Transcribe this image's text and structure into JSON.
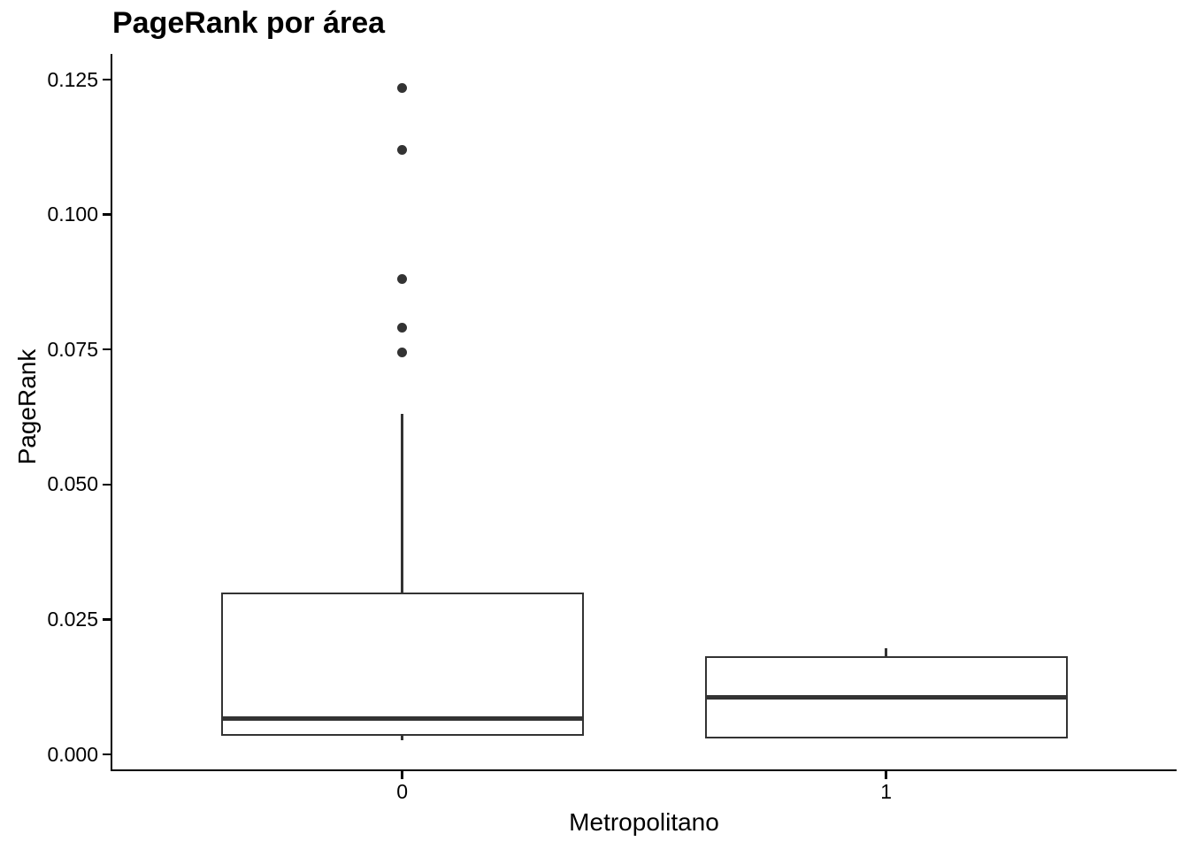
{
  "title": "PageRank por área",
  "chart_data": {
    "type": "boxplot",
    "title": "PageRank por área",
    "xlabel": "Metropolitano",
    "ylabel": "PageRank",
    "categories": [
      "0",
      "1"
    ],
    "y_ticks": [
      {
        "value": 0.0,
        "label": "0.000"
      },
      {
        "value": 0.025,
        "label": "0.025"
      },
      {
        "value": 0.05,
        "label": "0.050"
      },
      {
        "value": 0.075,
        "label": "0.075"
      },
      {
        "value": 0.1,
        "label": "0.100"
      },
      {
        "value": 0.125,
        "label": "0.125"
      }
    ],
    "ylim": [
      0,
      0.13
    ],
    "grid": false,
    "legend": false,
    "series": [
      {
        "category": "0",
        "whisker_low": 0.0026,
        "q1": 0.0034,
        "median": 0.0067,
        "q3": 0.03,
        "whisker_high": 0.063,
        "outliers": [
          0.0745,
          0.079,
          0.088,
          0.112,
          0.1235
        ]
      },
      {
        "category": "1",
        "whisker_low": 0.0029,
        "q1": 0.0029,
        "median": 0.0105,
        "q3": 0.0182,
        "whisker_high": 0.0196,
        "outliers": []
      }
    ],
    "colors": {
      "box_stroke": "#333333",
      "median": "#333333",
      "outlier": "#333333",
      "axis": "#000000",
      "text": "#000000",
      "background": "#ffffff"
    }
  }
}
